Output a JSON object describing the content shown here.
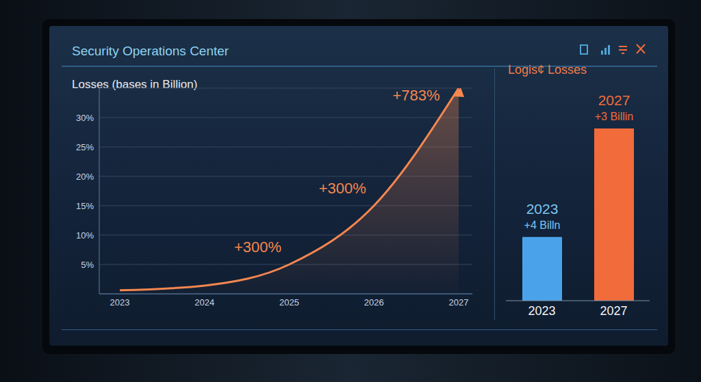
{
  "header": "Security Operations Center",
  "chart_data": [
    {
      "type": "area",
      "title": "Losses (bases in Billion)",
      "categories": [
        "2023",
        "2024",
        "2025",
        "2026",
        "2027"
      ],
      "values": [
        0.6,
        1.4,
        5,
        15,
        35
      ],
      "color": "#f5874f",
      "marker": "arrow",
      "ylim": [
        0,
        35
      ],
      "yticks": [
        {
          "value": 5,
          "label": "5%"
        },
        {
          "value": 10,
          "label": "10%"
        },
        {
          "value": 15,
          "label": "15%"
        },
        {
          "value": 20,
          "label": "20%"
        },
        {
          "value": 25,
          "label": "25%"
        },
        {
          "value": 30,
          "label": "30%"
        }
      ],
      "grid": true,
      "annotations": [
        {
          "category": "2025",
          "text": "+300%"
        },
        {
          "category": "2026",
          "text": "+300%"
        },
        {
          "category": "2027",
          "text": "+783%"
        }
      ]
    },
    {
      "type": "bar",
      "title": "Logis¢ Losses",
      "categories": [
        "2023",
        "2027"
      ],
      "values": [
        10,
        27
      ],
      "colors": [
        "#4aa3ea",
        "#f26b3a"
      ],
      "tick_labels": "x",
      "annotations": [
        {
          "category": "2023",
          "texts": [
            "2023",
            "+4 Billn"
          ]
        },
        {
          "category": "2027",
          "texts": [
            "2027",
            "+3 Billin"
          ]
        }
      ]
    }
  ]
}
